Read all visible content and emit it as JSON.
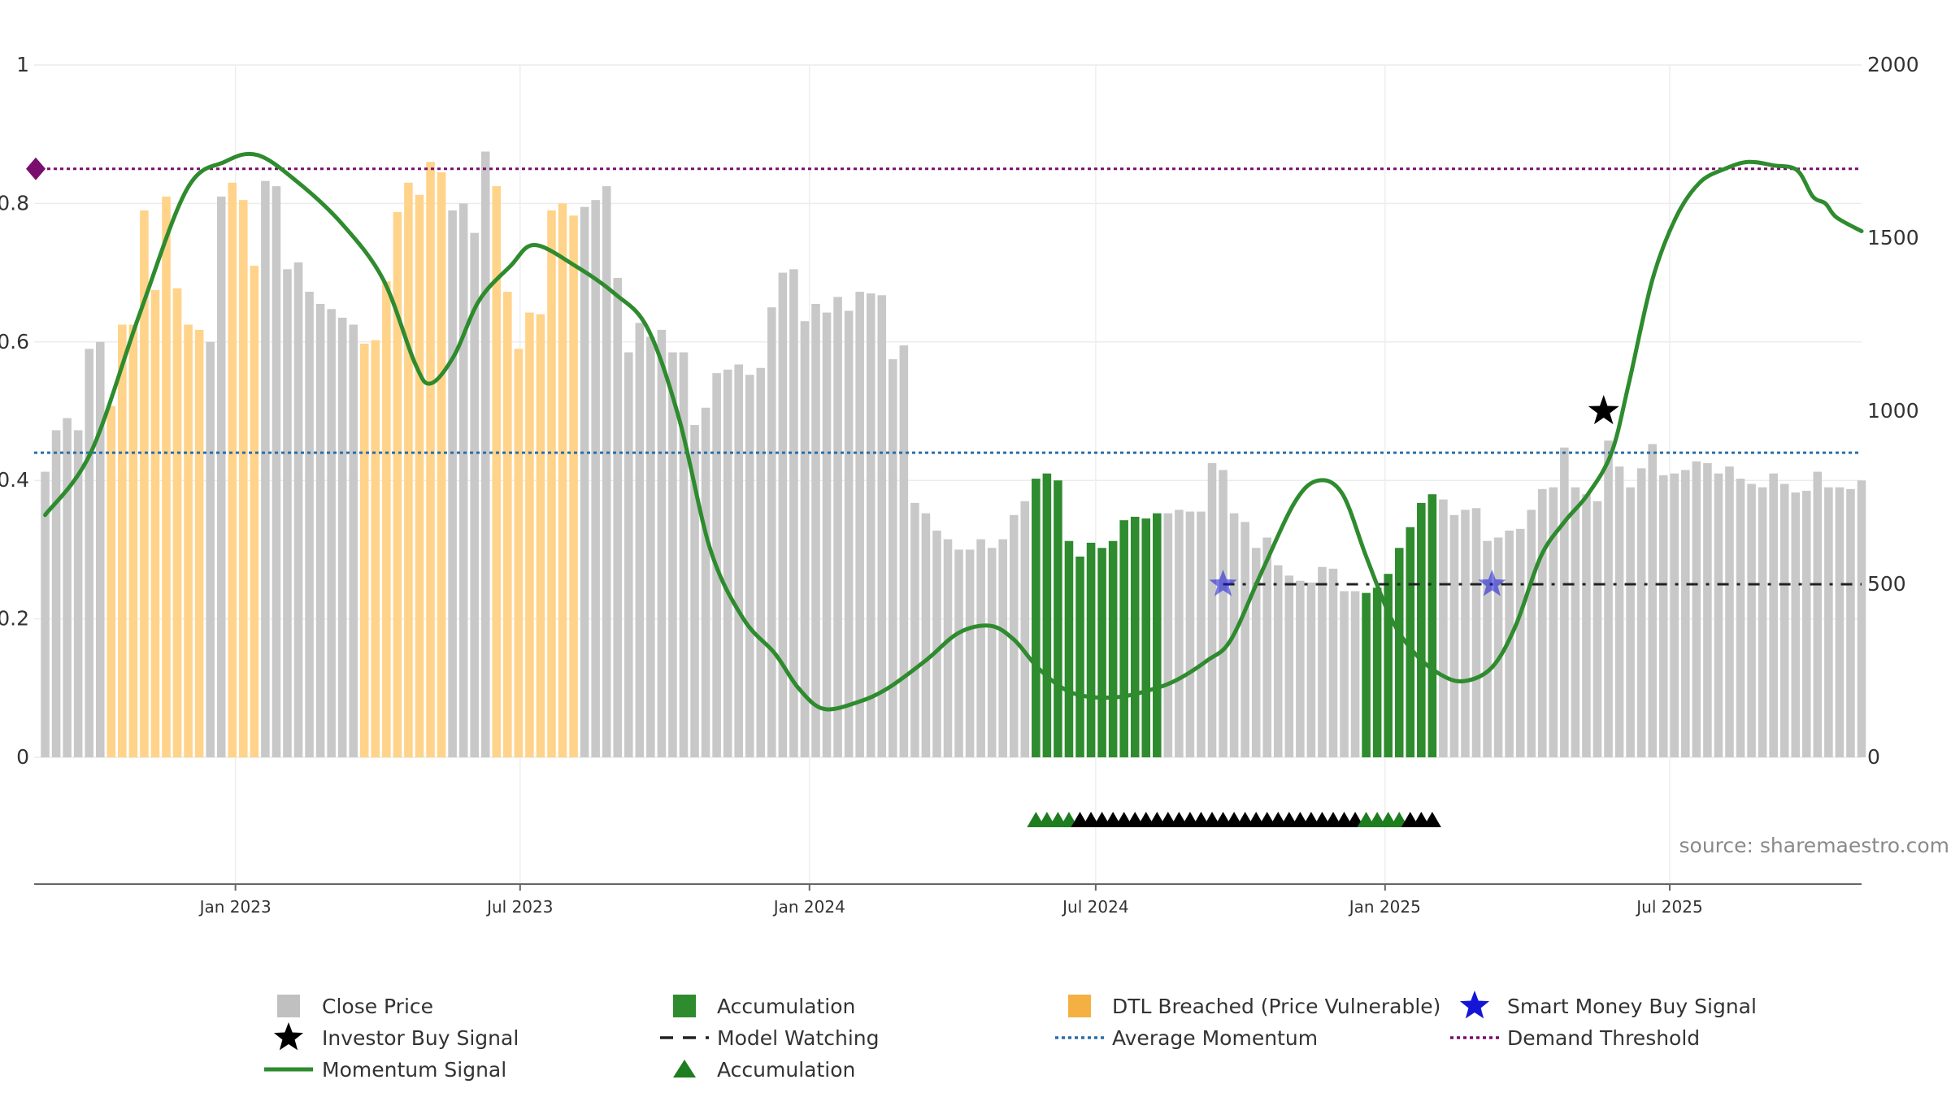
{
  "chart_data": {
    "type": "bar",
    "title": "",
    "source_text": "source: sharemaestro.com",
    "left_axis": {
      "ylim": [
        0,
        1
      ],
      "ticks": [
        "0",
        "0.2",
        "0.4",
        "0.6",
        "0.8",
        "1"
      ],
      "tick_values": [
        0,
        0.2,
        0.4,
        0.6,
        0.8,
        1
      ]
    },
    "right_axis": {
      "ylim": [
        0,
        2000
      ],
      "ticks": [
        "0",
        "500",
        "1000",
        "1500",
        "2000"
      ],
      "tick_values": [
        0,
        500,
        1000,
        1500,
        2000
      ]
    },
    "x_axis": {
      "start": "2022-08-26",
      "end": "2025-10-31",
      "ticks": [
        {
          "date": "2023-01-01",
          "label": "Jan 2023"
        },
        {
          "date": "2023-07-01",
          "label": "Jul 2023"
        },
        {
          "date": "2024-01-01",
          "label": "Jan 2024"
        },
        {
          "date": "2024-07-01",
          "label": "Jul 2024"
        },
        {
          "date": "2025-01-01",
          "label": "Jan 2025"
        },
        {
          "date": "2025-07-01",
          "label": "Jul 2025"
        }
      ]
    },
    "grid": true,
    "bar_series": {
      "name": "Close Price",
      "axis": "right",
      "weekly_start": "2022-09-02",
      "week_step_days": 7,
      "values": [
        825,
        945,
        980,
        945,
        1180,
        1200,
        1015,
        1250,
        1250,
        1580,
        1350,
        1620,
        1355,
        1250,
        1235,
        1200,
        1620,
        1660,
        1610,
        1420,
        1665,
        1650,
        1410,
        1430,
        1345,
        1310,
        1295,
        1270,
        1250,
        1195,
        1205,
        1375,
        1575,
        1660,
        1625,
        1720,
        1690,
        1580,
        1600,
        1515,
        1750,
        1650,
        1345,
        1180,
        1285,
        1280,
        1580,
        1600,
        1565,
        1590,
        1610,
        1650,
        1385,
        1170,
        1255,
        1215,
        1235,
        1170,
        1170,
        960,
        1010,
        1110,
        1120,
        1135,
        1105,
        1125,
        1300,
        1400,
        1410,
        1260,
        1310,
        1285,
        1330,
        1290,
        1345,
        1340,
        1335,
        1150,
        1190,
        735,
        705,
        655,
        630,
        600,
        600,
        630,
        605,
        630,
        700,
        740,
        805,
        820,
        800,
        625,
        580,
        620,
        605,
        625,
        685,
        695,
        690,
        705,
        705,
        715,
        710,
        710,
        850,
        830,
        705,
        680,
        605,
        635,
        555,
        525,
        510,
        505,
        550,
        545,
        480,
        480,
        475,
        490,
        530,
        605,
        665,
        735,
        760,
        745,
        700,
        715,
        720,
        625,
        635,
        655,
        660,
        715,
        775,
        780,
        895,
        780,
        760,
        740,
        915,
        840,
        780,
        835,
        905,
        815,
        820,
        830,
        855,
        850,
        820,
        840,
        805,
        790,
        780,
        820,
        790,
        765,
        770,
        825,
        780,
        780,
        775,
        800
      ],
      "color": "#c8c8c8"
    },
    "accumulation_bars": {
      "name": "Accumulation",
      "color": "#2e8b2e",
      "ranges": [
        [
          90,
          101
        ],
        [
          120,
          126
        ]
      ]
    },
    "dtl_breached_bars": {
      "name": "DTL Breached (Price Vulnerable)",
      "color": "#ffd38a",
      "ranges": [
        [
          6,
          14
        ],
        [
          17,
          19
        ],
        [
          29,
          36
        ],
        [
          41,
          48
        ]
      ]
    },
    "momentum_signal": {
      "name": "Momentum Signal",
      "axis": "left",
      "color": "#2e8b2e",
      "points": [
        [
          "2022-09-02",
          0.35
        ],
        [
          "2022-10-01",
          0.44
        ],
        [
          "2022-11-01",
          0.64
        ],
        [
          "2022-12-01",
          0.82
        ],
        [
          "2022-12-25",
          0.86
        ],
        [
          "2023-01-15",
          0.87
        ],
        [
          "2023-02-10",
          0.83
        ],
        [
          "2023-03-10",
          0.77
        ],
        [
          "2023-04-05",
          0.69
        ],
        [
          "2023-04-25",
          0.57
        ],
        [
          "2023-05-05",
          0.54
        ],
        [
          "2023-05-20",
          0.58
        ],
        [
          "2023-06-05",
          0.66
        ],
        [
          "2023-06-25",
          0.71
        ],
        [
          "2023-07-10",
          0.74
        ],
        [
          "2023-08-05",
          0.71
        ],
        [
          "2023-08-30",
          0.67
        ],
        [
          "2023-09-20",
          0.62
        ],
        [
          "2023-10-10",
          0.49
        ],
        [
          "2023-10-30",
          0.3
        ],
        [
          "2023-11-20",
          0.2
        ],
        [
          "2023-12-10",
          0.15
        ],
        [
          "2023-12-25",
          0.1
        ],
        [
          "2024-01-10",
          0.07
        ],
        [
          "2024-02-01",
          0.08
        ],
        [
          "2024-02-20",
          0.1
        ],
        [
          "2024-03-15",
          0.14
        ],
        [
          "2024-04-05",
          0.18
        ],
        [
          "2024-04-25",
          0.19
        ],
        [
          "2024-05-10",
          0.17
        ],
        [
          "2024-05-25",
          0.13
        ],
        [
          "2024-06-10",
          0.1
        ],
        [
          "2024-06-25",
          0.088
        ],
        [
          "2024-07-15",
          0.087
        ],
        [
          "2024-08-01",
          0.095
        ],
        [
          "2024-08-20",
          0.11
        ],
        [
          "2024-09-10",
          0.14
        ],
        [
          "2024-09-25",
          0.17
        ],
        [
          "2024-10-15",
          0.27
        ],
        [
          "2024-11-05",
          0.37
        ],
        [
          "2024-11-20",
          0.4
        ],
        [
          "2024-12-05",
          0.38
        ],
        [
          "2024-12-20",
          0.29
        ],
        [
          "2025-01-05",
          0.2
        ],
        [
          "2025-01-20",
          0.15
        ],
        [
          "2025-02-05",
          0.12
        ],
        [
          "2025-02-20",
          0.11
        ],
        [
          "2025-03-10",
          0.13
        ],
        [
          "2025-03-25",
          0.19
        ],
        [
          "2025-04-10",
          0.29
        ],
        [
          "2025-04-25",
          0.34
        ],
        [
          "2025-05-10",
          0.38
        ],
        [
          "2025-05-25",
          0.44
        ],
        [
          "2025-06-05",
          0.54
        ],
        [
          "2025-06-20",
          0.69
        ],
        [
          "2025-07-05",
          0.78
        ],
        [
          "2025-07-20",
          0.83
        ],
        [
          "2025-08-05",
          0.85
        ],
        [
          "2025-08-20",
          0.86
        ],
        [
          "2025-09-05",
          0.855
        ],
        [
          "2025-09-20",
          0.848
        ],
        [
          "2025-09-30",
          0.81
        ],
        [
          "2025-10-08",
          0.8
        ],
        [
          "2025-10-15",
          0.78
        ],
        [
          "2025-10-31",
          0.76
        ]
      ]
    },
    "average_momentum": {
      "name": "Average Momentum",
      "value": 0.44,
      "color": "#2a6fa8"
    },
    "demand_threshold": {
      "name": "Demand Threshold",
      "value": 0.85,
      "color": "#7a0e6e"
    },
    "model_watching": {
      "name": "Model Watching",
      "value": 0.25,
      "start": "2024-09-20",
      "end": "2025-10-31",
      "color": "#222222"
    },
    "smart_money_buy_signals": {
      "name": "Smart Money Buy Signal",
      "color": "#1515d8",
      "points": [
        [
          "2024-09-20",
          0.25
        ],
        [
          "2025-03-10",
          0.25
        ]
      ]
    },
    "investor_buy_signals": {
      "name": "Investor Buy Signal",
      "color": "#000000",
      "points": [
        [
          "2025-05-20",
          0.5
        ]
      ]
    },
    "accumulation_markers": {
      "name": "Accumulation",
      "green_color": "#1e7d1e",
      "other_color": "#000000",
      "first_week_index": 90,
      "green_flags": [
        1,
        1,
        1,
        1,
        0,
        0,
        0,
        0,
        0,
        0,
        0,
        0,
        0,
        0,
        0,
        0,
        0,
        0,
        0,
        0,
        0,
        0,
        0,
        0,
        0,
        0,
        0,
        0,
        0,
        0,
        1,
        1,
        1,
        1,
        0,
        0,
        0
      ]
    },
    "demand_marker": {
      "value": 0.85,
      "color": "#7a0e6e"
    },
    "legend": [
      {
        "label": "Close Price",
        "type": "square",
        "color": "#c0c0c0"
      },
      {
        "label": "Investor Buy Signal",
        "type": "star",
        "color": "#000000"
      },
      {
        "label": "Momentum Signal",
        "type": "line",
        "color": "#2e8b2e"
      },
      {
        "label": "Accumulation",
        "type": "square",
        "color": "#2e8b2e"
      },
      {
        "label": "Model Watching",
        "type": "dash",
        "color": "#222222"
      },
      {
        "label": "Accumulation",
        "type": "triangle",
        "color": "#1e7d1e"
      },
      {
        "label": "DTL Breached (Price Vulnerable)",
        "type": "square",
        "color": "#f5b043"
      },
      {
        "label": "Average Momentum",
        "type": "dotted",
        "color": "#2a6fa8"
      },
      {
        "label": "Smart Money Buy Signal",
        "type": "star",
        "color": "#1515d8"
      },
      {
        "label": "Demand Threshold",
        "type": "dotted",
        "color": "#7a0e6e"
      }
    ]
  }
}
